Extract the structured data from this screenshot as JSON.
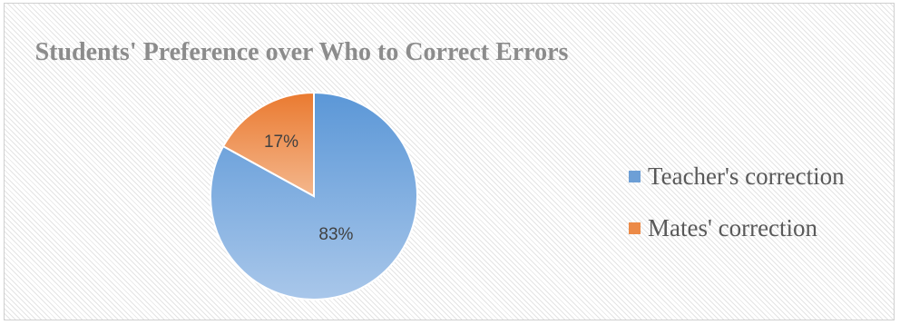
{
  "chart_data": {
    "type": "pie",
    "title": "Students' Preference over Who to Correct Errors",
    "categories": [
      "Teacher's correction",
      "Mates' correction"
    ],
    "values": [
      83,
      17
    ],
    "data_labels": [
      "83%",
      "17%"
    ],
    "colors": [
      "#6d9fd6",
      "#ec8a47"
    ],
    "legend_position": "right",
    "legend": [
      {
        "label": "Teacher's correction",
        "color": "#6d9fd6"
      },
      {
        "label": "Mates' correction",
        "color": "#ec8a47"
      }
    ]
  }
}
